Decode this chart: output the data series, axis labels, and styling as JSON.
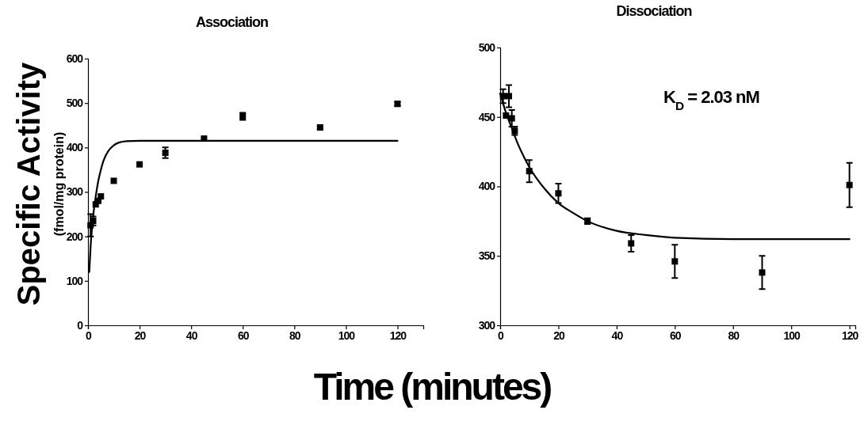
{
  "chart_data": [
    {
      "type": "scatter",
      "title": "Association",
      "xlabel": "Time (minutes)",
      "ylabel": "Specific Activity (fmol/mg protein)",
      "xlim": [
        0,
        130
      ],
      "xticks": [
        0,
        20,
        40,
        60,
        80,
        100,
        120
      ],
      "ylim": [
        0,
        600
      ],
      "yticks": [
        0,
        100,
        200,
        300,
        400,
        500,
        600
      ],
      "series": [
        {
          "marker": "square",
          "color": "#000000",
          "x": [
            1,
            2,
            3,
            4,
            5,
            10,
            20,
            30,
            45,
            60,
            90,
            120
          ],
          "values": [
            225,
            235,
            272,
            280,
            290,
            325,
            362,
            388,
            420,
            470,
            445,
            498
          ],
          "errors": [
            25,
            10,
            null,
            null,
            null,
            null,
            null,
            12,
            null,
            8,
            5,
            5
          ]
        },
        {
          "type": "line",
          "marker": "none",
          "color": "#000000",
          "x": [
            0.5,
            1,
            2,
            3,
            4,
            5,
            6,
            8,
            10,
            12,
            15,
            20,
            120
          ],
          "values": [
            120,
            175,
            245,
            290,
            325,
            350,
            370,
            393,
            405,
            411,
            414,
            415,
            415
          ]
        }
      ]
    },
    {
      "type": "scatter",
      "title": "Dissociation",
      "xlim": [
        0,
        122
      ],
      "xticks": [
        0,
        20,
        40,
        60,
        80,
        100,
        120
      ],
      "ylim": [
        300,
        500
      ],
      "yticks": [
        300,
        350,
        400,
        450,
        500
      ],
      "annotations": [
        "K$_{D}$ = 2.03 nM"
      ],
      "series": [
        {
          "marker": "square",
          "color": "#000000",
          "x": [
            1,
            2,
            3,
            4,
            5,
            10,
            20,
            30,
            45,
            60,
            90,
            120
          ],
          "values": [
            465,
            451,
            465,
            449,
            440,
            411,
            395,
            375,
            359,
            346,
            338,
            401
          ],
          "errors": [
            5,
            null,
            8,
            6,
            3,
            8,
            7,
            2,
            6,
            12,
            12,
            16
          ]
        },
        {
          "type": "line",
          "marker": "none",
          "color": "#000000",
          "x": [
            0,
            2,
            4,
            6,
            8,
            10,
            15,
            20,
            25,
            30,
            40,
            50,
            60,
            80,
            120
          ],
          "values": [
            467,
            453,
            442,
            431,
            422,
            414,
            399,
            388,
            381,
            375,
            368,
            365,
            363,
            362,
            362
          ]
        }
      ]
    }
  ]
}
